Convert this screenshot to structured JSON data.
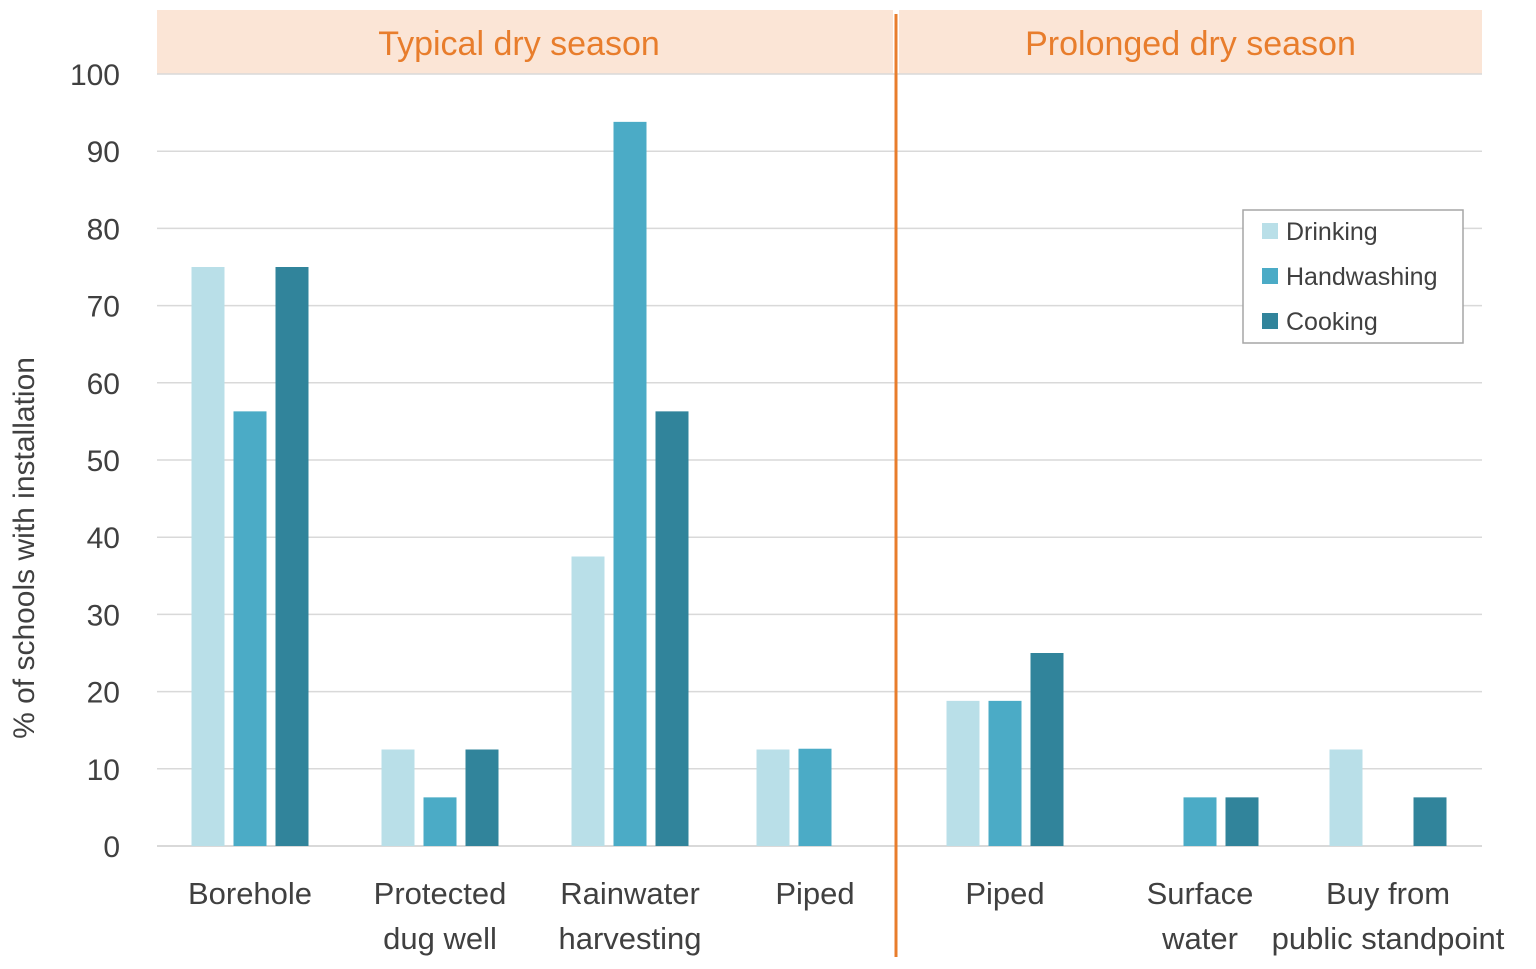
{
  "colors": {
    "drinking": "#b9dfe8",
    "handwashing": "#4babc6",
    "cooking": "#31849b",
    "accent": "#e87d2c",
    "panel_bg": "#fbe5d6",
    "grid": "#d9d9d9",
    "text": "#404040"
  },
  "chart_data": {
    "type": "bar",
    "title": "",
    "xlabel": "",
    "ylabel": "% of schools with installation",
    "ylim": [
      0,
      100
    ],
    "yticks": [
      "0",
      "10",
      "20",
      "30",
      "40",
      "50",
      "60",
      "70",
      "80",
      "90",
      "100"
    ],
    "grid": true,
    "legend_position": "top-right",
    "panels": [
      {
        "name": "Typical dry season",
        "categories": [
          {
            "label": [
              "Borehole"
            ],
            "values": [
              75,
              56.3,
              75
            ]
          },
          {
            "label": [
              "Protected",
              "dug well"
            ],
            "values": [
              12.5,
              6.3,
              12.5
            ]
          },
          {
            "label": [
              "Rainwater",
              "harvesting"
            ],
            "values": [
              37.5,
              93.8,
              56.3
            ]
          },
          {
            "label": [
              "Piped"
            ],
            "values": [
              12.5,
              12.6,
              0
            ]
          }
        ]
      },
      {
        "name": "Prolonged dry season",
        "categories": [
          {
            "label": [
              "Piped"
            ],
            "values": [
              18.8,
              18.8,
              25
            ]
          },
          {
            "label": [
              "Surface",
              "water"
            ],
            "values": [
              0,
              6.3,
              6.3
            ]
          },
          {
            "label": [
              "Buy from",
              "public standpoint"
            ],
            "values": [
              12.5,
              0,
              6.3
            ]
          }
        ]
      }
    ],
    "series": [
      {
        "name": "Drinking",
        "color_key": "drinking"
      },
      {
        "name": "Handwashing",
        "color_key": "handwashing"
      },
      {
        "name": "Cooking",
        "color_key": "cooking"
      }
    ]
  }
}
